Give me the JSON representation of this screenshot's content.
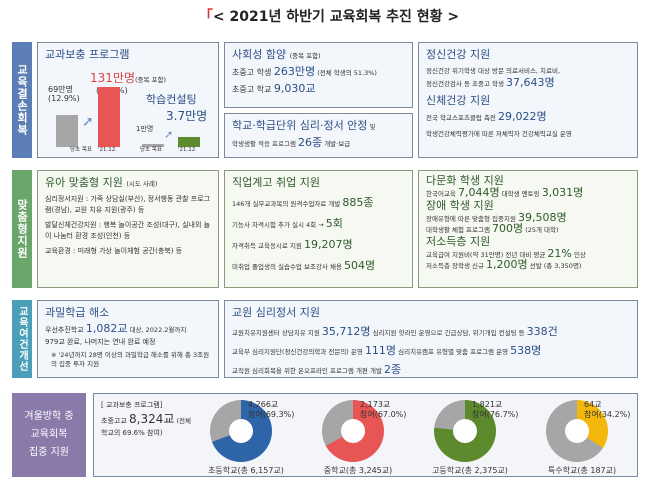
{
  "title": {
    "bracket": "「",
    "text": "< 2021년 하반기 교육회복 추진 현황 >"
  },
  "sections": {
    "s1": {
      "label": "교육결손회복",
      "color": "#5b7fb5",
      "supplement": {
        "title": "교과보충 프로그램",
        "bar1_value": "69만명",
        "bar1_pct": "(12.9%)",
        "bar1_axis": "당초 목표",
        "bar2_value": "131만명",
        "bar2_note": "(중복 포함)",
        "bar2_pct": "(25.7%)",
        "bar2_axis": "'21.12.",
        "consult_title": "학습컨설팅",
        "bar3_value": "1만명",
        "bar3_axis": "당초 목표",
        "bar4_value": "3.7만명",
        "bar4_axis": "'21.12.",
        "bars": [
          {
            "value_manmyeong": 69,
            "color": "#a6a6a6"
          },
          {
            "value_manmyeong": 131,
            "color": "#e85555"
          },
          {
            "value_manmyeong": 1,
            "color": "#a6a6a6"
          },
          {
            "value_manmyeong": 3.7,
            "color": "#5e8a2e"
          }
        ]
      },
      "social": {
        "title": "사회성 함양",
        "title_note": "(중복 포함)",
        "l1a": "초중고 학생 ",
        "l1b": "263만명",
        "l1c": " (전체 학생의 51.3%)",
        "l2a": "초중고 학교 ",
        "l2b": "9,030교"
      },
      "psych": {
        "title_a": "학교·학급단위 심리·정서 안정",
        "title_b": " 및",
        "l1a": "학생생활 적응 프로그램 ",
        "l1b": "26종",
        "l1c": " 개발·보급"
      },
      "mental": {
        "title": "정신건강 지원",
        "l1": "정신건강 위기학생 대상 방문 의료서비스, 치료비,",
        "l2a": "정신건강검사 등 초중고 학생 ",
        "l2b": "37,643명",
        "title2": "신체건강 지원",
        "l3a": "전국 학교스포츠클럽 축전 ",
        "l3b": "29,022명",
        "l4": "학생건강체력평가에 따른 저체력자 건강체력교실 운영"
      }
    },
    "s2": {
      "label": "맞춤형지원",
      "color": "#6aa56a",
      "infant": {
        "title": "유아 맞춤형 지원",
        "title_note": "(시도 사례)",
        "p1": "심리정서지원 : 가족 상담실(부산), 정서행동 관찰 프로그램(경남), 교원 치유 지원(광주) 등",
        "p2": "발달신체건강지원 : 행복 놀이공간 조성(대구), 실내외 놀이 나눔터 환경 조성(인천) 등",
        "p3": "교육환경 : 미래형 가상 놀이체험 공간(충북) 등"
      },
      "vocational": {
        "title": "직업계고 취업 지원",
        "l1a": "146개 실무교과목의 원격수업자료 개발 ",
        "l1b": "885종",
        "l2a": "기능사 자격시험 추가 실시 4회 → ",
        "l2b": "5회",
        "l3a": "자격취득 교육응시료 지원 ",
        "l3b": "19,207명",
        "l4a": "미취업 졸업생의 실습수업 보조강사 채용 ",
        "l4b": "504명"
      },
      "multi": {
        "title": "다문화 학생 지원",
        "l1a": "한국어교육 ",
        "l1b": "7,044명",
        "l1c": " 대학생 멘토링 ",
        "l1d": "3,031명",
        "title2": "장애 학생 지원",
        "l2a": "장애유형에 따른 맞춤형 집중지원 ",
        "l2b": "39,508명",
        "l3a": "대학생활 체험 프로그램 ",
        "l3b": "700명",
        "l3c": " (25개 대학)",
        "title3": "저소득층 지원",
        "l4a": "교육급여 지원비(약 31만명) 전년 대비 평균 ",
        "l4b": "21%",
        "l4c": " 인상",
        "l5a": "저소득층 장학생 신규 ",
        "l5b": "1,200명",
        "l5c": " 선발 (총 3,350명)"
      }
    },
    "s3": {
      "label": "교육여건개선",
      "color": "#4aa0b8",
      "class": {
        "title": "과밀학급 해소",
        "l1a": "우선추진학교 ",
        "l1b": "1,082교",
        "l1c": " 대상, 2022.2월까지",
        "l2": "979교 완료, 나머지는 연내 완료 예정",
        "l3": "※ '24년까지 28명 이상의 과밀학급 해소를 위해 총 3조원의 집중 투자 지원"
      },
      "teacher": {
        "title": "교원 심리정서 지원",
        "l1a": "교원치유지원센터 상담치유 지원 ",
        "l1b": "35,712명",
        "l1c": " 심리지원 핫라인 운영으로 긴급상담, 위기개입 컨설팅 등 ",
        "l1d": "338건",
        "l2a": "교육부 심리지원단(정신건강의학과 전문의) 운영 ",
        "l2b": "111명",
        "l2c": " 심리치유캠프 유형별 맞춤 프로그램 운영 ",
        "l2d": "538명",
        "l3a": "교직원 심리회복을 위한 온오프라인 프로그램 개편 개발 ",
        "l3b": "2종"
      }
    },
    "s4": {
      "label": "겨울방학 중\n교육회복\n집중 지원",
      "color": "#8a7aaa",
      "program": "[ 교과보충 프로그램]",
      "l1a": "초중고교 ",
      "l1b": "8,324교",
      "l1c": " (전체",
      "l2": "학교의 69.6% 참여)",
      "donuts": [
        {
          "count": "4,266교",
          "pct_label": "참여(69.3%)",
          "pct": 69.3,
          "name": "초등학교(총 6,157교)",
          "color": "#2e64a8"
        },
        {
          "count": "2,173교",
          "pct_label": "참여(67.0%)",
          "pct": 67.0,
          "name": "중학교(총 3,245교)",
          "color": "#e85555"
        },
        {
          "count": "1,821교",
          "pct_label": "참여(76.7%)",
          "pct": 76.7,
          "name": "고등학교(총 2,375교)",
          "color": "#5e8a2e"
        },
        {
          "count": "64교",
          "pct_label": "참여(34.2%)",
          "pct": 34.2,
          "name": "특수학교(총 187교)",
          "color": "#f2b70a"
        }
      ]
    }
  }
}
